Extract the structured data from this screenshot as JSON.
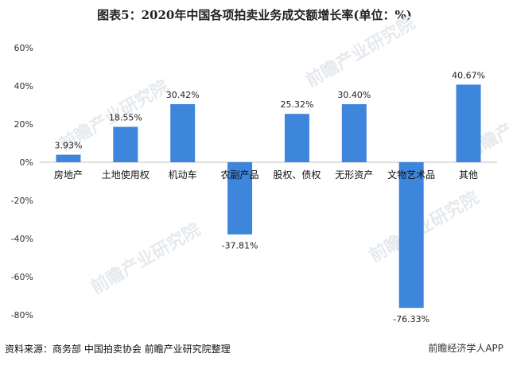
{
  "chart_data": {
    "type": "bar",
    "title": "图表5：2020年中国各项拍卖业务成交额增长率(单位：%)",
    "categories": [
      "房地产",
      "土地使用权",
      "机动车",
      "农副产品",
      "股权、债权",
      "无形资产",
      "文物艺术品",
      "其他"
    ],
    "values": [
      3.93,
      18.55,
      30.42,
      -37.81,
      25.32,
      30.4,
      -76.33,
      40.67
    ],
    "data_labels": [
      "3.93%",
      "18.55%",
      "30.42%",
      "-37.81%",
      "25.32%",
      "30.40%",
      "-76.33%",
      "40.67%"
    ],
    "ylim": [
      -80,
      60
    ],
    "yticks": [
      60,
      40,
      20,
      0,
      -20,
      -40,
      -60,
      -80
    ],
    "ytick_labels": [
      "60%",
      "40%",
      "20%",
      "0%",
      "-20%",
      "-40%",
      "-60%",
      "-80%"
    ],
    "grid": false,
    "bar_color": "#3e85dc"
  },
  "source": "资料来源：商务部 中国拍卖协会 前瞻产业研究院整理",
  "badge": "前瞻经济学人APP",
  "watermark": "前瞻产业研究院"
}
